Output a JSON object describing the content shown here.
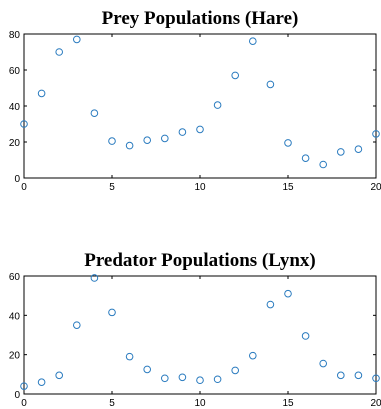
{
  "chart_data": [
    {
      "type": "scatter",
      "title": "Prey Populations (Hare)",
      "xlim": [
        0,
        20
      ],
      "ylim": [
        0,
        80
      ],
      "xticks": [
        0,
        5,
        10,
        15,
        20
      ],
      "yticks": [
        0,
        20,
        40,
        60,
        80
      ],
      "grid": false,
      "marker_color": "#2a7bbf",
      "x": [
        0,
        1,
        2,
        3,
        4,
        5,
        6,
        7,
        8,
        9,
        10,
        11,
        12,
        13,
        14,
        15,
        16,
        17,
        18,
        19,
        20
      ],
      "y": [
        30,
        47,
        70,
        77,
        36,
        20.5,
        18,
        21,
        22,
        25.5,
        27,
        40.5,
        57,
        76,
        52,
        19.5,
        11,
        7.5,
        14.5,
        16,
        24.5
      ]
    },
    {
      "type": "scatter",
      "title": "Predator Populations (Lynx)",
      "xlim": [
        0,
        20
      ],
      "ylim": [
        0,
        60
      ],
      "xticks": [
        0,
        5,
        10,
        15,
        20
      ],
      "yticks": [
        0,
        20,
        40,
        60
      ],
      "grid": false,
      "marker_color": "#2a7bbf",
      "x": [
        0,
        1,
        2,
        3,
        4,
        5,
        6,
        7,
        8,
        9,
        10,
        11,
        12,
        13,
        14,
        15,
        16,
        17,
        18,
        19,
        20
      ],
      "y": [
        4,
        6,
        9.5,
        35,
        59,
        41.5,
        19,
        12.5,
        8,
        8.5,
        7,
        7.5,
        12,
        19.5,
        45.5,
        51,
        29.5,
        15.5,
        9.5,
        9.5,
        8
      ]
    }
  ]
}
